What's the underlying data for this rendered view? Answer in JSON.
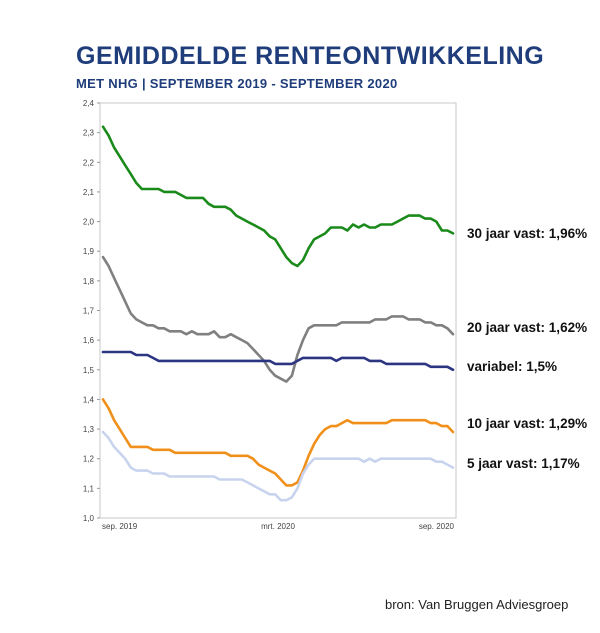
{
  "title": "GEMIDDELDE RENTEONTWIKKELING",
  "subtitle": "MET NHG | SEPTEMBER 2019 - SEPTEMBER 2020",
  "source": "bron: Van Bruggen Adviesgroep",
  "chart_data": {
    "type": "line",
    "ylim": [
      1.0,
      2.4
    ],
    "yticks": [
      "1,0",
      "1,1",
      "1,2",
      "1,3",
      "1,4",
      "1,5",
      "1,6",
      "1,7",
      "1,8",
      "1,9",
      "2,0",
      "2,1",
      "2,2",
      "2,3",
      "2,4"
    ],
    "xtick_labels": [
      "sep. 2019",
      "mrt. 2020",
      "sep. 2020"
    ],
    "grid": false,
    "series": [
      {
        "name": "30 jaar vast",
        "end_label": "30 jaar vast: 1,96%",
        "color": "#1a8a1a",
        "values": [
          2.32,
          2.29,
          2.25,
          2.22,
          2.19,
          2.16,
          2.13,
          2.11,
          2.11,
          2.11,
          2.11,
          2.1,
          2.1,
          2.1,
          2.09,
          2.08,
          2.08,
          2.08,
          2.08,
          2.06,
          2.05,
          2.05,
          2.05,
          2.04,
          2.02,
          2.01,
          2.0,
          1.99,
          1.98,
          1.97,
          1.95,
          1.94,
          1.91,
          1.88,
          1.86,
          1.85,
          1.87,
          1.91,
          1.94,
          1.95,
          1.96,
          1.98,
          1.98,
          1.98,
          1.97,
          1.99,
          1.98,
          1.99,
          1.98,
          1.98,
          1.99,
          1.99,
          1.99,
          2.0,
          2.01,
          2.02,
          2.02,
          2.02,
          2.01,
          2.01,
          2.0,
          1.97,
          1.97,
          1.96
        ]
      },
      {
        "name": "20 jaar vast",
        "end_label": "20 jaar vast: 1,62%",
        "color": "#808080",
        "values": [
          1.88,
          1.85,
          1.81,
          1.77,
          1.73,
          1.69,
          1.67,
          1.66,
          1.65,
          1.65,
          1.64,
          1.64,
          1.63,
          1.63,
          1.63,
          1.62,
          1.63,
          1.62,
          1.62,
          1.62,
          1.63,
          1.61,
          1.61,
          1.62,
          1.61,
          1.6,
          1.59,
          1.57,
          1.55,
          1.53,
          1.5,
          1.48,
          1.47,
          1.46,
          1.48,
          1.55,
          1.6,
          1.64,
          1.65,
          1.65,
          1.65,
          1.65,
          1.65,
          1.66,
          1.66,
          1.66,
          1.66,
          1.66,
          1.66,
          1.67,
          1.67,
          1.67,
          1.68,
          1.68,
          1.68,
          1.67,
          1.67,
          1.67,
          1.66,
          1.66,
          1.65,
          1.65,
          1.64,
          1.62
        ]
      },
      {
        "name": "variabel",
        "end_label": "variabel: 1,5%",
        "color": "#2b3582",
        "values": [
          1.56,
          1.56,
          1.56,
          1.56,
          1.56,
          1.56,
          1.55,
          1.55,
          1.55,
          1.54,
          1.53,
          1.53,
          1.53,
          1.53,
          1.53,
          1.53,
          1.53,
          1.53,
          1.53,
          1.53,
          1.53,
          1.53,
          1.53,
          1.53,
          1.53,
          1.53,
          1.53,
          1.53,
          1.53,
          1.53,
          1.53,
          1.52,
          1.52,
          1.52,
          1.52,
          1.53,
          1.54,
          1.54,
          1.54,
          1.54,
          1.54,
          1.54,
          1.53,
          1.54,
          1.54,
          1.54,
          1.54,
          1.54,
          1.53,
          1.53,
          1.53,
          1.52,
          1.52,
          1.52,
          1.52,
          1.52,
          1.52,
          1.52,
          1.52,
          1.51,
          1.51,
          1.51,
          1.51,
          1.5
        ]
      },
      {
        "name": "10 jaar vast",
        "end_label": "10 jaar vast: 1,29%",
        "color": "#f0901a",
        "values": [
          1.4,
          1.37,
          1.33,
          1.3,
          1.27,
          1.24,
          1.24,
          1.24,
          1.24,
          1.23,
          1.23,
          1.23,
          1.23,
          1.22,
          1.22,
          1.22,
          1.22,
          1.22,
          1.22,
          1.22,
          1.22,
          1.22,
          1.22,
          1.21,
          1.21,
          1.21,
          1.21,
          1.2,
          1.18,
          1.17,
          1.16,
          1.15,
          1.13,
          1.11,
          1.11,
          1.12,
          1.16,
          1.21,
          1.25,
          1.28,
          1.3,
          1.31,
          1.31,
          1.32,
          1.33,
          1.32,
          1.32,
          1.32,
          1.32,
          1.32,
          1.32,
          1.32,
          1.33,
          1.33,
          1.33,
          1.33,
          1.33,
          1.33,
          1.33,
          1.32,
          1.32,
          1.31,
          1.31,
          1.29
        ]
      },
      {
        "name": "5 jaar vast",
        "end_label": "5 jaar vast: 1,17%",
        "color": "#c8d4ee",
        "values": [
          1.29,
          1.27,
          1.24,
          1.22,
          1.2,
          1.17,
          1.16,
          1.16,
          1.16,
          1.15,
          1.15,
          1.15,
          1.14,
          1.14,
          1.14,
          1.14,
          1.14,
          1.14,
          1.14,
          1.14,
          1.14,
          1.13,
          1.13,
          1.13,
          1.13,
          1.13,
          1.12,
          1.11,
          1.1,
          1.09,
          1.08,
          1.08,
          1.06,
          1.06,
          1.07,
          1.1,
          1.15,
          1.18,
          1.2,
          1.2,
          1.2,
          1.2,
          1.2,
          1.2,
          1.2,
          1.2,
          1.2,
          1.19,
          1.2,
          1.19,
          1.2,
          1.2,
          1.2,
          1.2,
          1.2,
          1.2,
          1.2,
          1.2,
          1.2,
          1.2,
          1.19,
          1.19,
          1.18,
          1.17
        ]
      }
    ]
  }
}
